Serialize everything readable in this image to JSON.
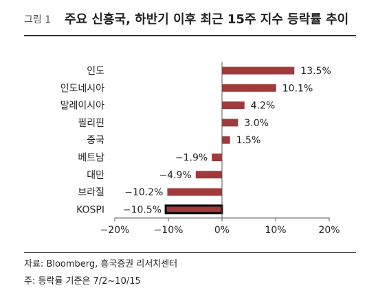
{
  "figure": {
    "label": "그림 1",
    "title": "주요 신흥국, 하반기 이후 최근 15주 지수 등락률 추이",
    "source": "자료: Bloomberg, 흥국증권 리서치센터",
    "note": "주: 등락률 기준은 7/2~10/15"
  },
  "colors": {
    "bar": "#A13A3A",
    "highlight_border": "#000000",
    "axis": "#555555",
    "text": "#222222"
  },
  "chart_data": {
    "type": "bar",
    "orientation": "horizontal",
    "categories": [
      "인도",
      "인도네시아",
      "말레이시아",
      "필리핀",
      "중국",
      "베트남",
      "대만",
      "브라질",
      "KOSPI"
    ],
    "values": [
      13.5,
      10.1,
      4.2,
      3.0,
      1.5,
      -1.9,
      -4.9,
      -10.2,
      -10.5
    ],
    "value_labels": [
      "13.5%",
      "10.1%",
      "4.2%",
      "3.0%",
      "1.5%",
      "−1.9%",
      "−4.9%",
      "−10.2%",
      "−10.5%"
    ],
    "highlight": "KOSPI",
    "xlim": [
      -20,
      20
    ],
    "xticks": [
      -20,
      -10,
      0,
      10,
      20
    ],
    "xtick_labels": [
      "−20%",
      "−10%",
      "0%",
      "10%",
      "20%"
    ],
    "grid": false,
    "legend": "none"
  }
}
